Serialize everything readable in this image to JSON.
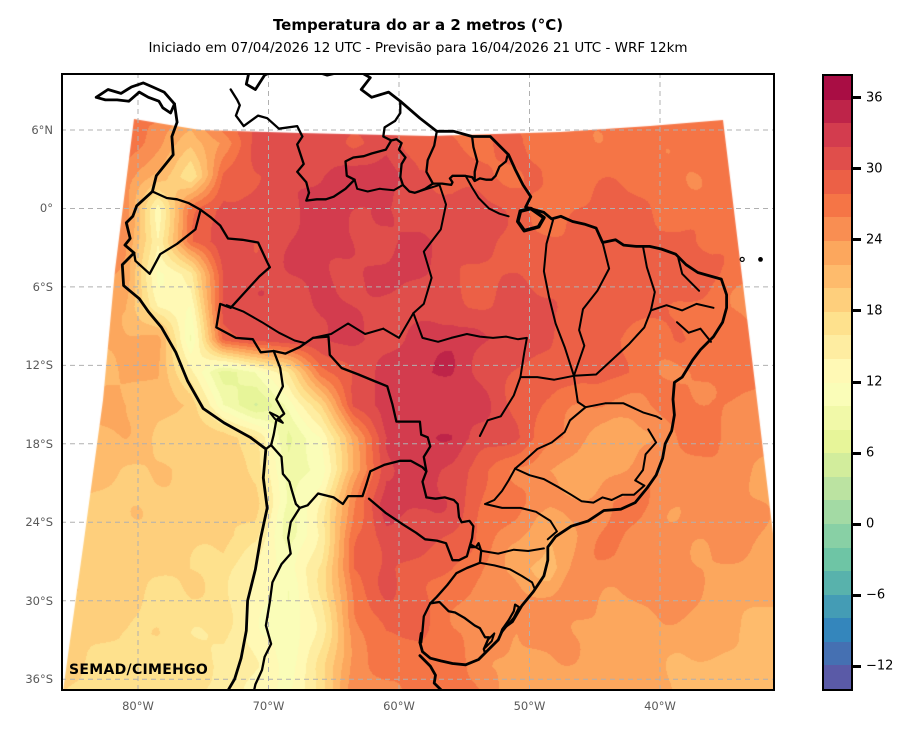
{
  "header": {
    "title": "Temperatura do ar a 2 metros (°C)",
    "subtitle": "Iniciado em 07/04/2026 12 UTC - Previsão para 16/04/2026 21 UTC - WRF 12km"
  },
  "watermark": "SEMAD/CIMEHGO",
  "axes": {
    "lat_ticks": [
      {
        "label": "6°N",
        "value": 6
      },
      {
        "label": "0°",
        "value": 0
      },
      {
        "label": "6°S",
        "value": -6
      },
      {
        "label": "12°S",
        "value": -12
      },
      {
        "label": "18°S",
        "value": -18
      },
      {
        "label": "24°S",
        "value": -24
      },
      {
        "label": "30°S",
        "value": -30
      },
      {
        "label": "36°S",
        "value": -36
      }
    ],
    "lon_ticks": [
      {
        "label": "80°W",
        "value": -80
      },
      {
        "label": "70°W",
        "value": -70
      },
      {
        "label": "60°W",
        "value": -60
      },
      {
        "label": "50°W",
        "value": -50
      },
      {
        "label": "40°W",
        "value": -40
      }
    ],
    "gridline_color": "#b0b0b0"
  },
  "colorbar": {
    "min": -14,
    "max": 38,
    "step": 2,
    "ticks": [
      {
        "label": "36",
        "value": 36
      },
      {
        "label": "30",
        "value": 30
      },
      {
        "label": "24",
        "value": 24
      },
      {
        "label": "18",
        "value": 18
      },
      {
        "label": "12",
        "value": 12
      },
      {
        "label": "6",
        "value": 6
      },
      {
        "label": "0",
        "value": 0
      },
      {
        "label": "−6",
        "value": -6
      },
      {
        "label": "−12",
        "value": -12
      }
    ],
    "colors": [
      "#5A5AA7",
      "#4570B2",
      "#3486BC",
      "#449CB5",
      "#58B2AC",
      "#6EC5A5",
      "#88D0A5",
      "#A3DAA4",
      "#BBE3A1",
      "#D2ED9C",
      "#E7F599",
      "#F1F9A8",
      "#FAFDB8",
      "#FFF9B5",
      "#FEEDA1",
      "#FEE18D",
      "#FECF7C",
      "#FEBB6C",
      "#FCA75D",
      "#F98E52",
      "#F57546",
      "#EC6046",
      "#E04E4B",
      "#D33C4E",
      "#BE2449",
      "#A90D44"
    ]
  },
  "chart_data": {
    "type": "heatmap",
    "title": "Temperatura do ar a 2 metros (°C)",
    "units": "°C",
    "levels": {
      "min": -14,
      "max": 38,
      "step": 2
    },
    "extent": {
      "lon": [
        -85.9,
        -31.2
      ],
      "lat": [
        -36.9,
        10.36
      ]
    },
    "grid_lon_min": -86,
    "grid_lon_step": 2.5,
    "grid_lat_max": 10,
    "grid_lat_step": 2.5,
    "grid_cols": 23,
    "grid_rows": 20,
    "grid": [
      [
        27,
        27,
        27,
        28,
        28,
        28,
        29,
        30,
        29,
        29,
        29,
        28,
        28,
        27,
        27,
        27,
        27,
        27,
        27,
        27,
        27,
        27,
        27
      ],
      [
        27,
        27,
        27,
        27,
        24,
        28,
        30,
        31,
        30,
        30,
        29,
        29,
        28,
        28,
        27,
        27,
        27,
        27,
        27,
        27,
        27,
        27,
        27
      ],
      [
        27,
        27,
        26,
        25,
        20,
        24,
        30,
        32,
        31,
        30,
        31,
        29,
        28,
        28,
        27,
        27,
        27,
        27,
        27,
        27,
        27,
        27,
        27
      ],
      [
        27,
        27,
        26,
        20,
        16,
        28,
        30,
        31,
        32,
        33,
        35,
        30,
        29,
        28,
        28,
        27,
        27,
        27,
        27,
        27,
        27,
        27,
        27
      ],
      [
        26,
        26,
        25,
        13,
        26,
        31,
        31,
        32,
        32,
        32,
        32,
        31,
        30,
        30,
        29,
        28,
        28,
        28,
        28,
        27,
        27,
        27,
        27
      ],
      [
        25,
        25,
        24,
        14,
        28,
        31,
        31,
        32,
        33,
        32,
        31,
        32,
        31,
        30,
        29,
        29,
        29,
        29,
        29,
        28,
        27,
        27,
        27
      ],
      [
        24,
        24,
        23,
        12,
        16,
        30,
        31,
        32,
        33,
        32,
        32,
        32,
        31,
        30,
        30,
        29,
        29,
        30,
        30,
        29,
        28,
        27,
        27
      ],
      [
        23,
        23,
        22,
        14,
        12,
        30,
        31,
        32,
        33,
        32,
        31,
        31,
        31,
        30,
        30,
        30,
        29,
        30,
        29,
        28,
        27,
        26,
        26
      ],
      [
        23,
        23,
        22,
        22,
        10,
        28,
        31,
        32,
        32,
        33,
        32,
        32,
        33,
        32,
        31,
        30,
        29,
        28,
        27,
        29,
        27,
        27,
        26
      ],
      [
        23,
        22,
        22,
        22,
        14,
        8,
        10,
        16,
        26,
        31,
        33,
        34,
        33,
        31,
        30,
        30,
        28,
        28,
        27,
        26,
        26,
        26,
        25
      ],
      [
        22,
        22,
        22,
        21,
        20,
        10,
        7,
        10,
        18,
        30,
        33,
        33,
        33,
        32,
        30,
        28,
        26,
        25,
        26,
        26,
        26,
        25,
        25
      ],
      [
        21,
        21,
        21,
        20,
        20,
        20,
        16,
        8,
        12,
        24,
        31,
        33,
        34,
        32,
        30,
        27,
        24,
        23,
        24,
        26,
        26,
        25,
        25
      ],
      [
        21,
        21,
        20,
        20,
        20,
        19,
        17,
        8,
        12,
        22,
        32,
        33,
        32,
        29,
        26,
        23,
        22,
        24,
        26,
        25,
        25,
        25,
        24
      ],
      [
        20,
        20,
        20,
        19,
        19,
        19,
        18,
        10,
        14,
        26,
        34,
        33,
        31,
        28,
        26,
        24,
        24,
        26,
        26,
        25,
        25,
        24,
        24
      ],
      [
        20,
        20,
        19,
        19,
        19,
        19,
        17,
        8,
        14,
        28,
        32,
        31,
        29,
        27,
        25,
        22,
        24,
        26,
        25,
        25,
        24,
        24,
        23
      ],
      [
        20,
        19,
        19,
        19,
        18,
        18,
        14,
        10,
        16,
        28,
        30,
        29,
        28,
        26,
        24,
        21,
        25,
        25,
        25,
        24,
        24,
        23,
        23
      ],
      [
        19,
        19,
        19,
        18,
        18,
        17,
        13,
        10,
        16,
        26,
        29,
        29,
        27,
        26,
        25,
        25,
        25,
        24,
        24,
        24,
        23,
        23,
        22
      ],
      [
        19,
        18,
        18,
        18,
        17,
        16,
        12,
        10,
        16,
        25,
        28,
        28,
        27,
        26,
        24,
        24,
        24,
        24,
        23,
        23,
        23,
        22,
        22
      ],
      [
        18,
        18,
        18,
        17,
        17,
        16,
        13,
        11,
        17,
        25,
        27,
        28,
        27,
        25,
        23,
        23,
        23,
        23,
        23,
        22,
        22,
        22,
        21
      ],
      [
        18,
        18,
        17,
        17,
        16,
        15,
        13,
        11,
        17,
        24,
        26,
        27,
        26,
        25,
        23,
        23,
        23,
        22,
        22,
        22,
        21,
        21,
        21
      ]
    ]
  }
}
